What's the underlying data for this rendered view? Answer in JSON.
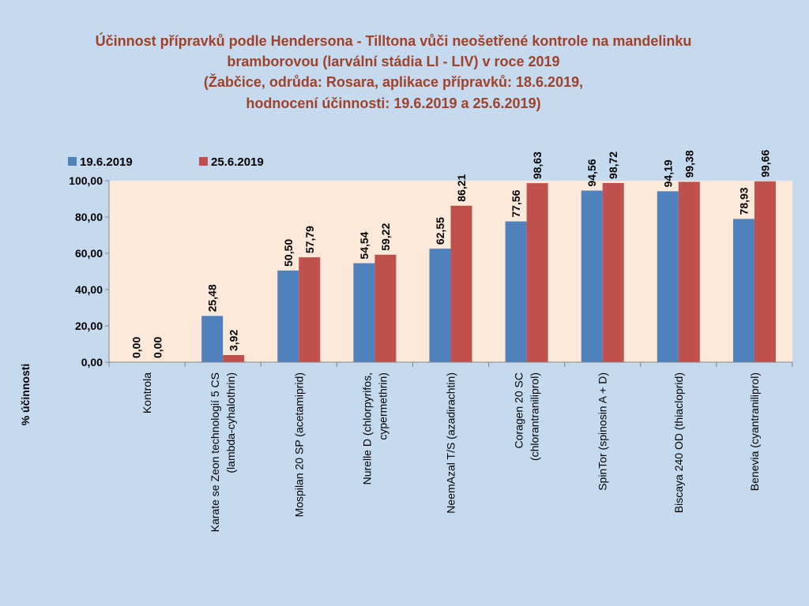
{
  "chart_data": {
    "type": "bar",
    "title": [
      "Účinnost přípravků podle Hendersona - Tilltona vůči neošetřené kontrole na mandelinku",
      "bramborovou (larvální stádia LI - LIV) v roce 2019",
      "(Žabčice, odrůda: Rosara, aplikace přípravků: 18.6.2019,",
      "hodnocení účinnosti: 19.6.2019 a 25.6.2019)"
    ],
    "ylabel": "% účinnosti",
    "xlabel": "",
    "ylim": [
      0,
      100
    ],
    "yticks": [
      "0,00",
      "20,00",
      "40,00",
      "60,00",
      "80,00",
      "100,00"
    ],
    "ytick_values": [
      0,
      20,
      40,
      60,
      80,
      100
    ],
    "grid": false,
    "legend_position": "top-left",
    "categories": [
      [
        "Kontrola"
      ],
      [
        "Karate se Zeon technologií 5 CS",
        "(lambda-cyhalothrin)"
      ],
      [
        "Mospilan 20 SP (acetamiprid)"
      ],
      [
        "Nurelle D (chlorpyrifos,",
        "cypermethrin)"
      ],
      [
        "NeemAzal T/S (azadirachtin)"
      ],
      [
        "Coragen 20 SC",
        "(chlorantraniliprol)"
      ],
      [
        "SpinTor (spinosin A + D)"
      ],
      [
        "Biscaya 240 OD (thiacloprid)"
      ],
      [
        "Benevia (cyantraniliprol)"
      ]
    ],
    "series": [
      {
        "name": "19.6.2019",
        "color": "#4f81bd",
        "values": [
          0,
          25.48,
          50.5,
          54.54,
          62.55,
          77.56,
          94.56,
          94.19,
          78.93
        ],
        "labels": [
          "0,00",
          "25,48",
          "50,50",
          "54,54",
          "62,55",
          "77,56",
          "94,56",
          "94,19",
          "78,93"
        ]
      },
      {
        "name": "25.6.2019",
        "color": "#c0504d",
        "values": [
          0,
          3.92,
          57.79,
          59.22,
          86.21,
          98.63,
          98.72,
          99.38,
          99.66
        ],
        "labels": [
          "0,00",
          "3,92",
          "57,79",
          "59,22",
          "86,21",
          "98,63",
          "98,72",
          "99,38",
          "99,66"
        ]
      }
    ],
    "plot_background": "#fde9d9",
    "page_background": "#c5d9ef"
  }
}
